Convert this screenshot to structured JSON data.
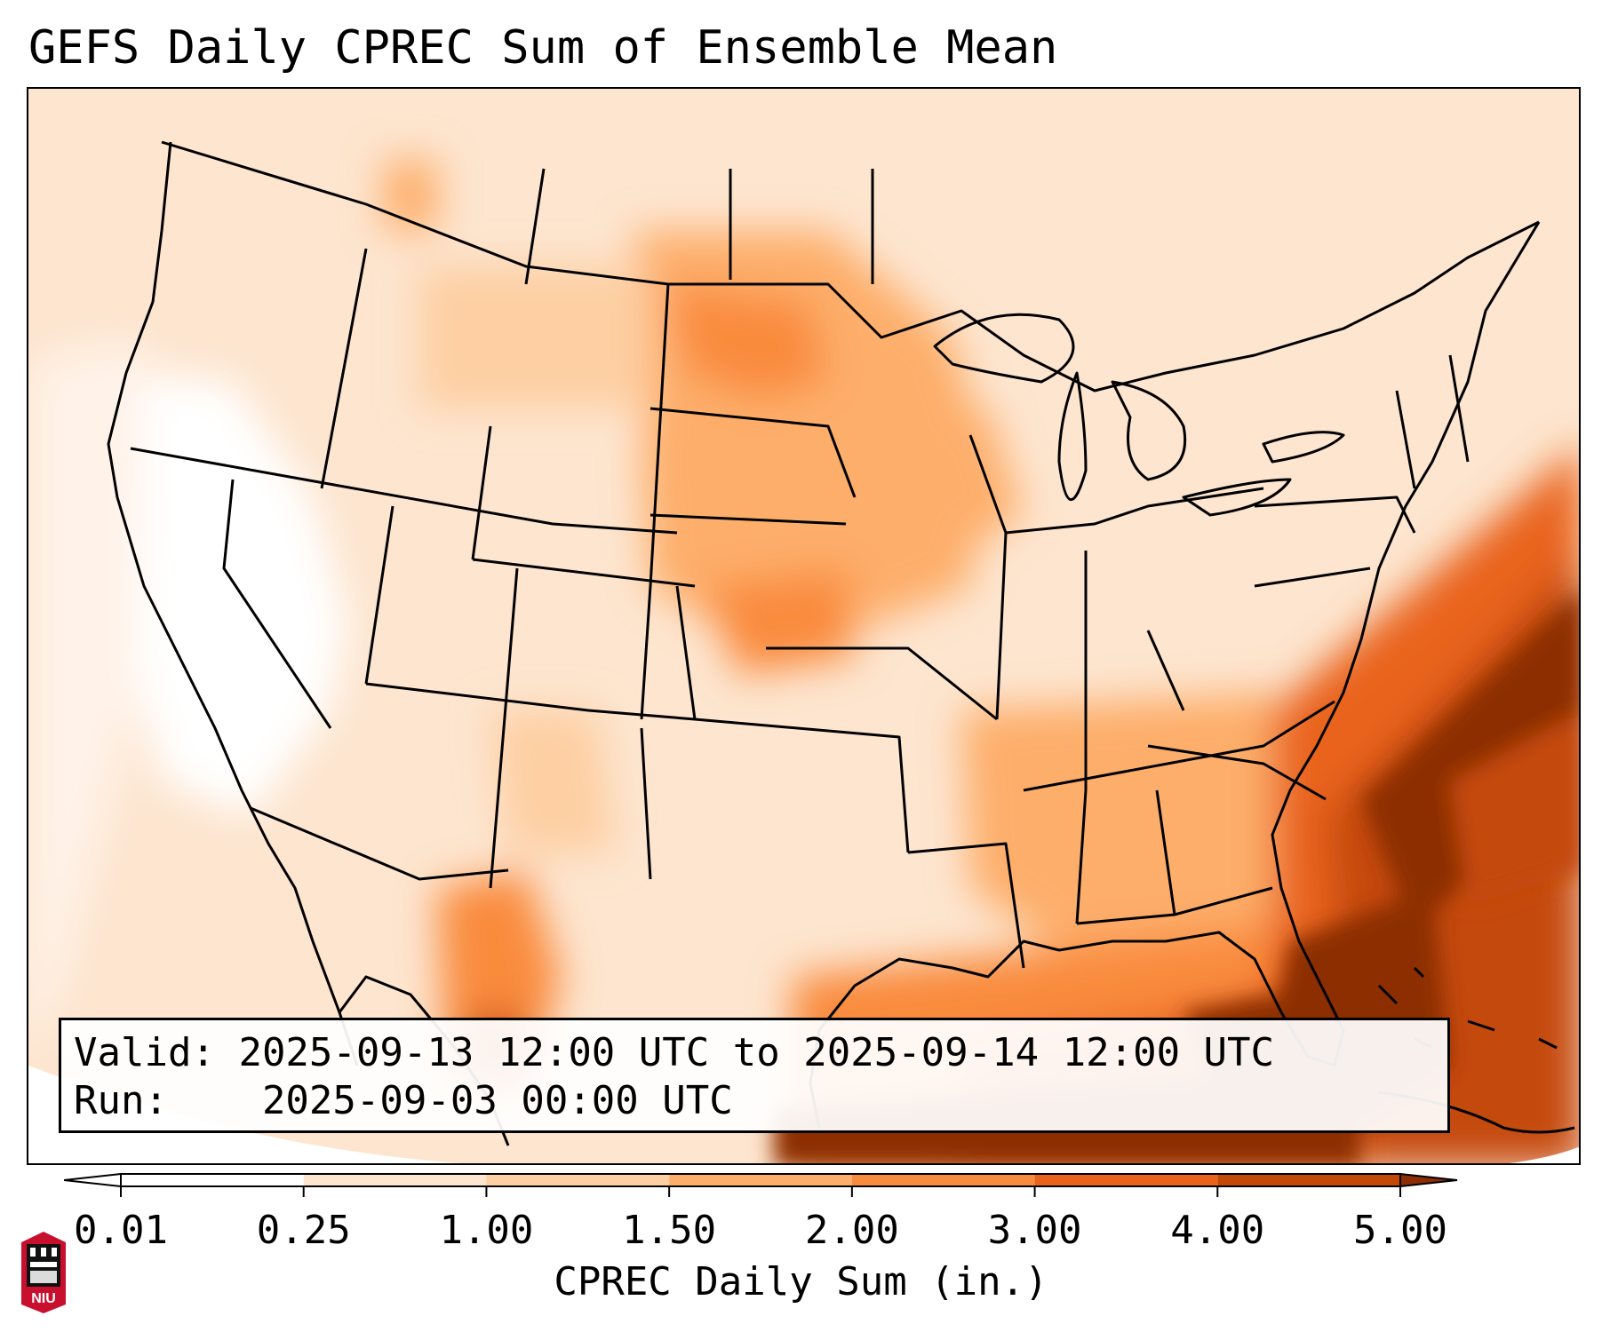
{
  "title": "GEFS Daily CPREC Sum of Ensemble Mean",
  "info": {
    "valid_label": "Valid:",
    "valid_value": "2025-09-13 12:00 UTC to 2025-09-14 12:00 UTC",
    "run_label": "Run:",
    "run_value": "2025-09-03 00:00 UTC"
  },
  "colorbar": {
    "label": "CPREC Daily Sum (in.)",
    "ticks": [
      "0.01",
      "0.25",
      "1.00",
      "1.50",
      "2.00",
      "3.00",
      "4.00",
      "5.00"
    ],
    "colors": [
      "#ffffff",
      "#fde5cf",
      "#fdcfa3",
      "#fdae6b",
      "#f98b3e",
      "#e9631a",
      "#c44907",
      "#8c2d04"
    ]
  },
  "logo": {
    "text": "NIU"
  }
}
